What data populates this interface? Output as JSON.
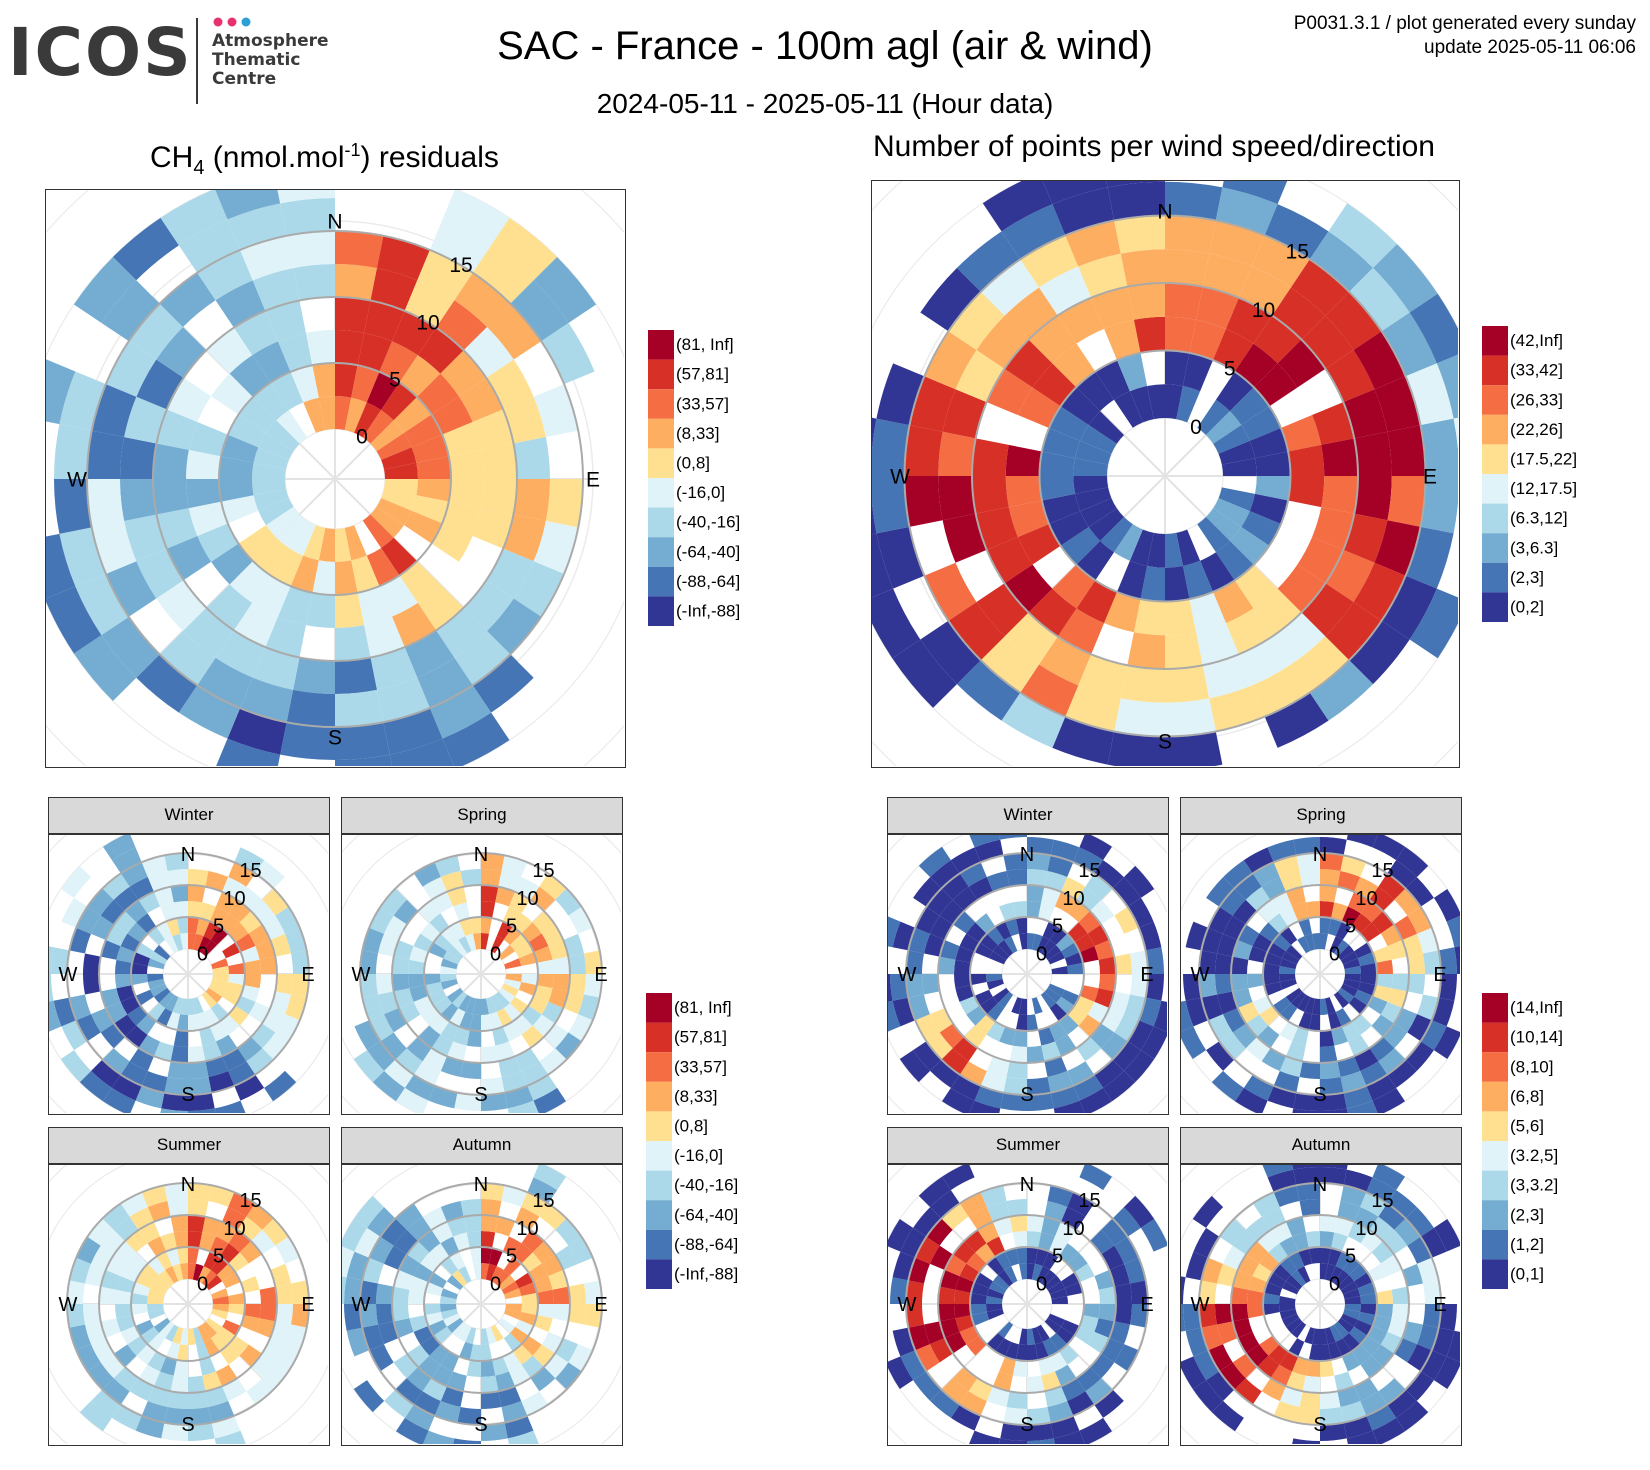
{
  "header": {
    "logo_text": "ICOS",
    "logo_sub": [
      "Atmosphere",
      "Thematic",
      "Centre"
    ],
    "logo_dot_colors": [
      "#e6336f",
      "#e6336f",
      "#2a9fd8"
    ],
    "title": "SAC - France - 100m agl (air & wind)",
    "subtitle": "2024-05-11 - 2025-05-11 (Hour data)",
    "meta_line1": "P0031.3.1 / plot generated every sunday",
    "meta_line2": "update  2025-05-11 06:06"
  },
  "panels": {
    "residuals_title_main": "CH",
    "residuals_title_sub": "4",
    "residuals_title_mid": " (nmol.mol",
    "residuals_title_sup": "-1",
    "residuals_title_end": ") residuals",
    "count_title": "Number of points per wind speed/direction",
    "facets": [
      "Winter",
      "Spring",
      "Summer",
      "Autumn"
    ]
  },
  "chart_data": [
    {
      "type": "heatmap",
      "name": "residuals-all",
      "coordinate": "polar",
      "directions": [
        "N",
        "E",
        "S",
        "W"
      ],
      "radial_ticks": [
        0,
        5,
        10,
        15
      ],
      "legend": {
        "labels": [
          "(81, Inf]",
          "(57,81]",
          "(33,57]",
          "(8,33]",
          "(0,8]",
          "(-16,0]",
          "(-40,-16]",
          "(-64,-40]",
          "(-88,-64]",
          "(-Inf,-88]"
        ],
        "colors": [
          "#a50026",
          "#d73027",
          "#f46d43",
          "#fdae61",
          "#fee090",
          "#e0f3f8",
          "#abd9e9",
          "#74add1",
          "#4575b4",
          "#313695"
        ]
      },
      "sector_classes": {
        "note": "dominant class index (0 = top legend entry) per 22.5deg sector starting at N going clockwise, per speed ring 0-5, 5-10, 10-15, 15-20",
        "rings": [
          [
            2,
            1,
            2,
            2,
            3,
            3,
            2,
            3,
            4,
            4,
            5,
            6,
            6,
            6,
            5,
            4
          ],
          [
            1,
            2,
            3,
            4,
            4,
            4,
            4,
            5,
            6,
            6,
            6,
            6,
            6,
            6,
            6,
            5
          ],
          [
            2,
            3,
            4,
            5,
            4,
            6,
            6,
            7,
            7,
            6,
            6,
            6,
            7,
            7,
            7,
            6
          ],
          [
            -1,
            5,
            6,
            -1,
            -1,
            -1,
            8,
            8,
            8,
            8,
            7,
            7,
            7,
            7,
            7,
            6
          ]
        ]
      }
    },
    {
      "type": "heatmap",
      "name": "counts-all",
      "coordinate": "polar",
      "directions": [
        "N",
        "E",
        "S",
        "W"
      ],
      "radial_ticks": [
        0,
        5,
        10,
        15
      ],
      "legend": {
        "labels": [
          "(42,Inf]",
          "(33,42]",
          "(26,33]",
          "(22,26]",
          "(17.5,22]",
          "(12,17.5]",
          "(6.3,12]",
          "(3,6.3]",
          "(2,3]",
          "(0,2]"
        ],
        "colors": [
          "#a50026",
          "#d73027",
          "#f46d43",
          "#fdae61",
          "#fee090",
          "#e0f3f8",
          "#abd9e9",
          "#74add1",
          "#4575b4",
          "#313695"
        ]
      },
      "sector_classes": {
        "rings": [
          [
            9,
            9,
            8,
            9,
            8,
            8,
            9,
            8,
            9,
            8,
            9,
            9,
            8,
            9,
            9,
            8
          ],
          [
            2,
            1,
            0,
            1,
            1,
            2,
            3,
            4,
            3,
            2,
            1,
            1,
            1,
            2,
            2,
            2
          ],
          [
            3,
            2,
            1,
            0,
            1,
            2,
            5,
            5,
            4,
            3,
            1,
            0,
            1,
            3,
            4,
            4
          ],
          [
            8,
            7,
            7,
            6,
            8,
            9,
            8,
            9,
            9,
            7,
            9,
            9,
            9,
            9,
            9,
            9
          ]
        ]
      }
    },
    {
      "type": "heatmap",
      "name": "residuals-seasonal",
      "facets": [
        "Winter",
        "Spring",
        "Summer",
        "Autumn"
      ],
      "coordinate": "polar",
      "radial_ticks": [
        0,
        5,
        10,
        15
      ],
      "legend": {
        "labels": [
          "(81, Inf]",
          "(57,81]",
          "(33,57]",
          "(8,33]",
          "(0,8]",
          "(-16,0]",
          "(-40,-16]",
          "(-64,-40]",
          "(-88,-64]",
          "(-Inf,-88]"
        ],
        "colors": [
          "#a50026",
          "#d73027",
          "#f46d43",
          "#fdae61",
          "#fee090",
          "#e0f3f8",
          "#abd9e9",
          "#74add1",
          "#4575b4",
          "#313695"
        ]
      }
    },
    {
      "type": "heatmap",
      "name": "counts-seasonal",
      "facets": [
        "Winter",
        "Spring",
        "Summer",
        "Autumn"
      ],
      "coordinate": "polar",
      "radial_ticks": [
        0,
        5,
        10,
        15
      ],
      "legend": {
        "labels": [
          "(14,Inf]",
          "(10,14]",
          "(8,10]",
          "(6,8]",
          "(5,6]",
          "(3.2,5]",
          "(3,3.2]",
          "(2,3]",
          "(1,2]",
          "(0,1]"
        ],
        "colors": [
          "#a50026",
          "#d73027",
          "#f46d43",
          "#fdae61",
          "#fee090",
          "#e0f3f8",
          "#abd9e9",
          "#74add1",
          "#4575b4",
          "#313695"
        ]
      }
    }
  ]
}
